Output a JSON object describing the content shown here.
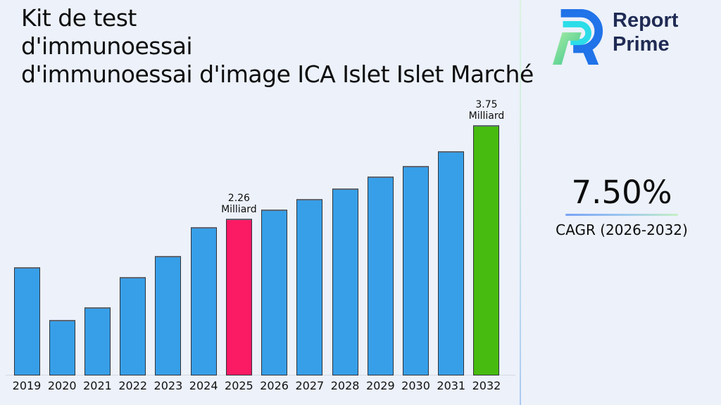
{
  "title": {
    "text": "Kit de test\nd'immunoessai\nd'immunoessai d'image ICA Islet Islet Marché"
  },
  "logo": {
    "name_line1": "Report",
    "name_line2": "Prime"
  },
  "kpi": {
    "value": "7.50%",
    "caption": "CAGR (2026-2032)"
  },
  "chart_data": {
    "type": "bar",
    "title": "Kit de test d'immunoessai d'immunoessai d'image ICA Islet Islet Marché",
    "xlabel": "",
    "ylabel": "",
    "unit": "Milliard",
    "grid": false,
    "legend": false,
    "categories": [
      "2019",
      "2020",
      "2021",
      "2022",
      "2023",
      "2024",
      "2025",
      "2026",
      "2027",
      "2028",
      "2029",
      "2030",
      "2031",
      "2032"
    ],
    "values": [
      1.49,
      0.65,
      0.85,
      1.33,
      1.67,
      2.13,
      2.26,
      2.41,
      2.57,
      2.74,
      2.93,
      3.1,
      3.34,
      3.75
    ],
    "labeled_points": [
      {
        "year": "2025",
        "value": 2.26,
        "label": "2.26 Milliard"
      },
      {
        "year": "2032",
        "value": 3.75,
        "label": "3.75 Milliard"
      }
    ],
    "annotations": [
      {
        "year": "2025",
        "value": "2.26",
        "unit": "Milliard"
      },
      {
        "year": "2032",
        "value": "3.75",
        "unit": "Milliard"
      }
    ],
    "bar_colors": {
      "default": "#379FE8",
      "2025": "#FB1A64",
      "2032": "#47BB0F"
    }
  },
  "palette": {
    "background": "#ECF1FA",
    "bar_blue": "#379FE8",
    "bar_pink": "#FB1A64",
    "bar_green": "#47BB0F",
    "logo_navy": "#1F2B54",
    "logo_blue": "#2073E8",
    "logo_cyan": "#2BDDE8",
    "logo_green": "#37C78E",
    "underline_gradient_left": "#79A2F5",
    "underline_gradient_right": "#C6F0C4"
  }
}
